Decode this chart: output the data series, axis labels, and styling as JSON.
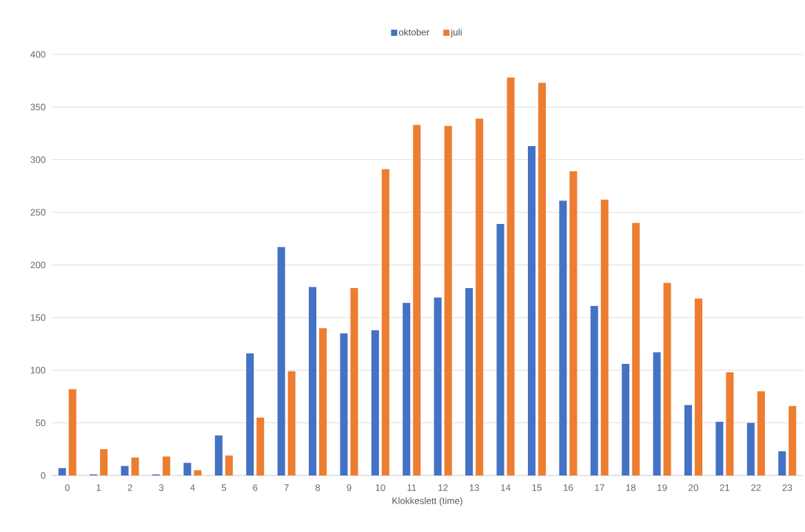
{
  "chart_data": {
    "type": "bar",
    "xlabel": "Klokkeslett (time)",
    "categories": [
      "0",
      "1",
      "2",
      "3",
      "4",
      "5",
      "6",
      "7",
      "8",
      "9",
      "10",
      "11",
      "12",
      "13",
      "14",
      "15",
      "16",
      "17",
      "18",
      "19",
      "20",
      "21",
      "22",
      "23"
    ],
    "series": [
      {
        "name": "oktober",
        "color": "#4472c4",
        "values": [
          7,
          1,
          9,
          1,
          12,
          38,
          116,
          217,
          179,
          135,
          138,
          164,
          169,
          178,
          239,
          313,
          261,
          161,
          106,
          117,
          67,
          51,
          50,
          23
        ]
      },
      {
        "name": "juli",
        "color": "#ed7d31",
        "values": [
          82,
          25,
          17,
          18,
          5,
          19,
          55,
          99,
          140,
          178,
          291,
          333,
          332,
          339,
          378,
          373,
          289,
          262,
          240,
          183,
          168,
          98,
          80,
          66
        ]
      }
    ],
    "ylim": [
      0,
      400
    ],
    "yticks": [
      0,
      50,
      100,
      150,
      200,
      250,
      300,
      350,
      400
    ],
    "grid": "y",
    "legend": "top"
  }
}
